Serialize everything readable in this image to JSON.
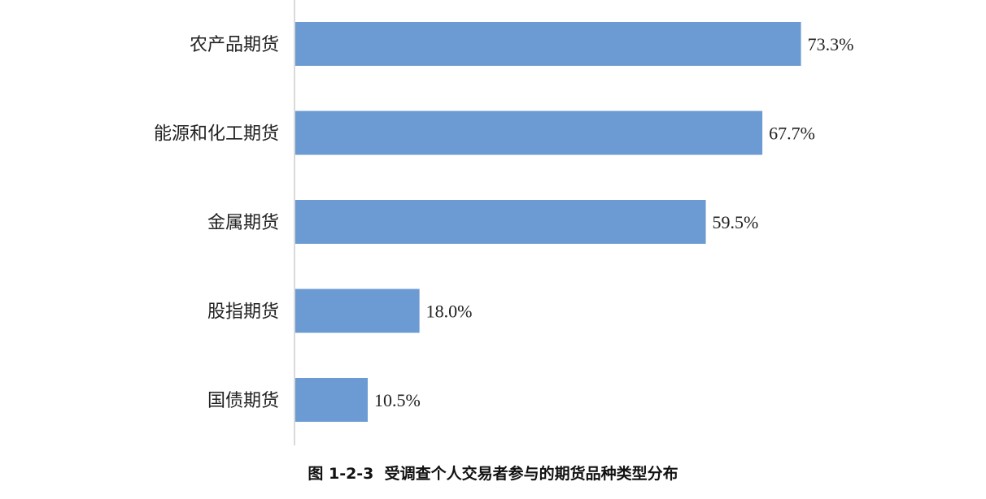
{
  "chart_data": {
    "type": "bar",
    "orientation": "horizontal",
    "categories": [
      "农产品期货",
      "能源和化工期货",
      "金属期货",
      "股指期货",
      "国债期货"
    ],
    "values": [
      73.3,
      67.7,
      59.5,
      18.0,
      10.5
    ],
    "value_labels": [
      "73.3%",
      "67.7%",
      "59.5%",
      "18.0%",
      "10.5%"
    ],
    "unit": "%",
    "xlim": [
      0,
      100
    ],
    "grid": false,
    "legend": "none",
    "bar_color": "#6b9bd2",
    "axis_color": "#d9d9d9"
  },
  "caption": "图 1-2-3  受调查个人交易者参与的期货品种类型分布"
}
